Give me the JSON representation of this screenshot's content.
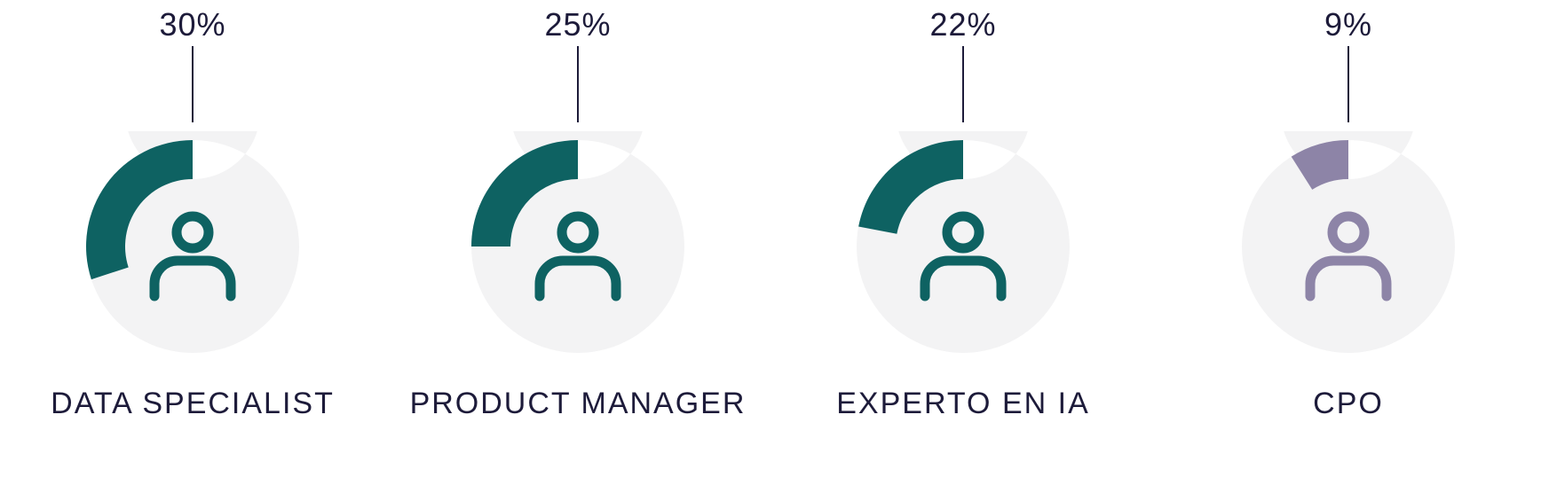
{
  "chart": {
    "type": "donut-multiples",
    "background_color": "#ffffff",
    "track_color": "#f3f3f4",
    "label_color": "#1d1b3a",
    "leader_color": "#1d1b3a",
    "ring_outer_radius": 120,
    "ring_inner_radius": 76,
    "icon_stroke_width": 11,
    "start_angle_deg": -90,
    "direction": "clockwise",
    "pct_fontsize": 36,
    "role_fontsize": 34,
    "roles": [
      {
        "label": "DATA SPECIALIST",
        "percent": 30,
        "pct_text": "30%",
        "accent": "#0e6262",
        "icon_color": "#0e6262"
      },
      {
        "label": "PRODUCT MANAGER",
        "percent": 25,
        "pct_text": "25%",
        "accent": "#0e6262",
        "icon_color": "#0e6262"
      },
      {
        "label": "EXPERTO EN IA",
        "percent": 22,
        "pct_text": "22%",
        "accent": "#0e6262",
        "icon_color": "#0e6262"
      },
      {
        "label": "CPO",
        "percent": 9,
        "pct_text": "9%",
        "accent": "#8d84a7",
        "icon_color": "#8d84a7"
      }
    ]
  }
}
